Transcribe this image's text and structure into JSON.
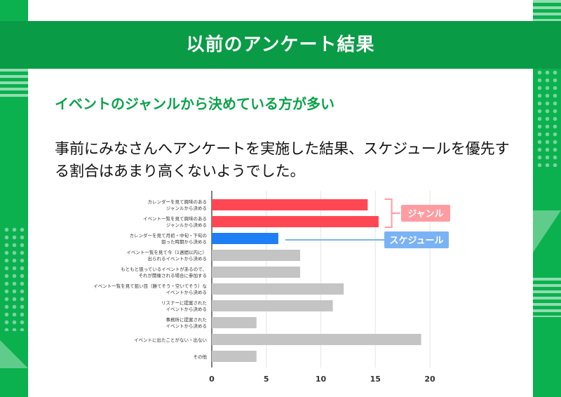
{
  "header": {
    "title": "以前のアンケート結果"
  },
  "subtitle": "イベントのジャンルから決めている方が多い",
  "body": "事前にみなさんへアンケートを実施した結果、スケジュールを優先する割合はあまり高くないようでした。",
  "colors": {
    "background": "#0bb14f",
    "header_bar": "#099b45",
    "subtitle": "#0aa34a",
    "genre": "#ff4754",
    "schedule": "#1e7ef5",
    "other": "#c4c4c4",
    "genre_tag": "#ff9ca2",
    "schedule_tag": "#7ab3f5"
  },
  "chart_data": {
    "type": "bar",
    "orientation": "horizontal",
    "categories": [
      [
        "カレンダーを見て興味のある",
        "ジャンルから決める"
      ],
      [
        "イベント一覧を見て興味のある",
        "ジャンルから決める"
      ],
      [
        "カレンダーを見て月初・中旬・下旬の",
        "狙った時期から決める"
      ],
      [
        "イベント一覧を見て今（1週間以内に）",
        "出られるイベントから決める"
      ],
      [
        "もともと狙っているイベントがあるので、",
        "それが開催される場合に参加する"
      ],
      [
        "イベント一覧を見て狙い目（勝てそう・空いてそう）な",
        "イベントから決める"
      ],
      [
        "リスナーに提案された",
        "イベントから決める"
      ],
      [
        "事務所に提案された",
        "イベントから決める"
      ],
      [
        "イベントに出たことがない・出ない"
      ],
      [
        "その他"
      ]
    ],
    "values": [
      14.3,
      15.3,
      6.1,
      8.1,
      8.1,
      12.1,
      11.1,
      4.1,
      19.2,
      4.1
    ],
    "groups": [
      "genre",
      "genre",
      "schedule",
      "other",
      "other",
      "other",
      "other",
      "other",
      "other",
      "other"
    ],
    "xlim": [
      0,
      20
    ],
    "xticks": [
      0,
      5,
      10,
      15,
      20
    ],
    "grid": true,
    "annotations": [
      {
        "label": "ジャンル",
        "group": "genre"
      },
      {
        "label": "スケジュール",
        "group": "schedule"
      }
    ]
  }
}
